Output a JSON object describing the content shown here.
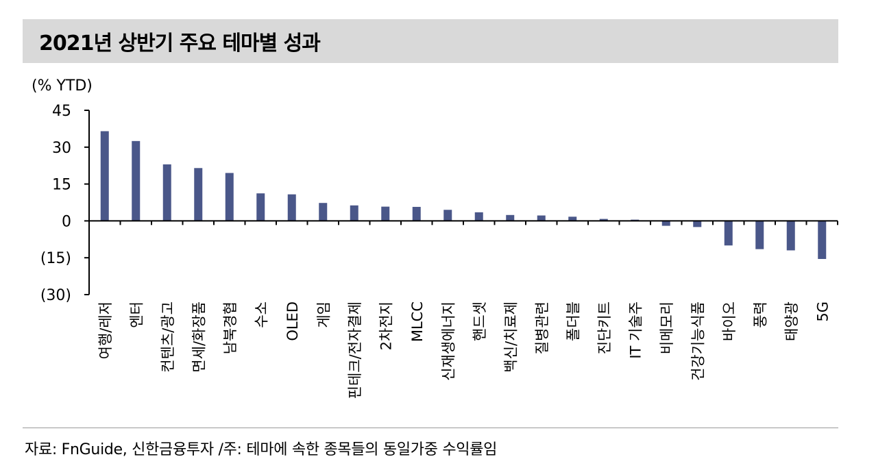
{
  "title": "2021년 상반기 주요 테마별 성과",
  "source": "자료: FnGuide, 신한금융투자 /주: 테마에 속한 종목들의 동일가중 수익률임",
  "colors": {
    "bar": "#4a5789",
    "axis": "#000000",
    "title_bg": "#d9d9d9"
  },
  "chart_data": {
    "type": "bar",
    "ylabel": "(% YTD)",
    "ylim": [
      -30,
      45
    ],
    "yticks": [
      45,
      30,
      15,
      0,
      -15,
      -30
    ],
    "ytick_labels": [
      "45",
      "30",
      "15",
      "0",
      "(15)",
      "(30)"
    ],
    "grid": false,
    "categories": [
      "여행/레저",
      "엔터",
      "컨텐츠/광고",
      "면세/화장품",
      "남북경협",
      "수소",
      "OLED",
      "게임",
      "핀테크/전자결제",
      "2차전지",
      "MLCC",
      "신재생에너지",
      "핸드셋",
      "백신/치료제",
      "질병관련",
      "폴더블",
      "진단키트",
      "IT 기술주",
      "비메모리",
      "건강기능식품",
      "바이오",
      "풍력",
      "태양광",
      "5G"
    ],
    "values": [
      36.5,
      32.5,
      23,
      21.5,
      19.5,
      11.2,
      10.8,
      7.3,
      6.3,
      5.8,
      5.7,
      4.5,
      3.5,
      2.4,
      2.2,
      1.7,
      0.8,
      0.5,
      -2.0,
      -2.5,
      -10,
      -11.5,
      -12,
      -15.5
    ]
  }
}
